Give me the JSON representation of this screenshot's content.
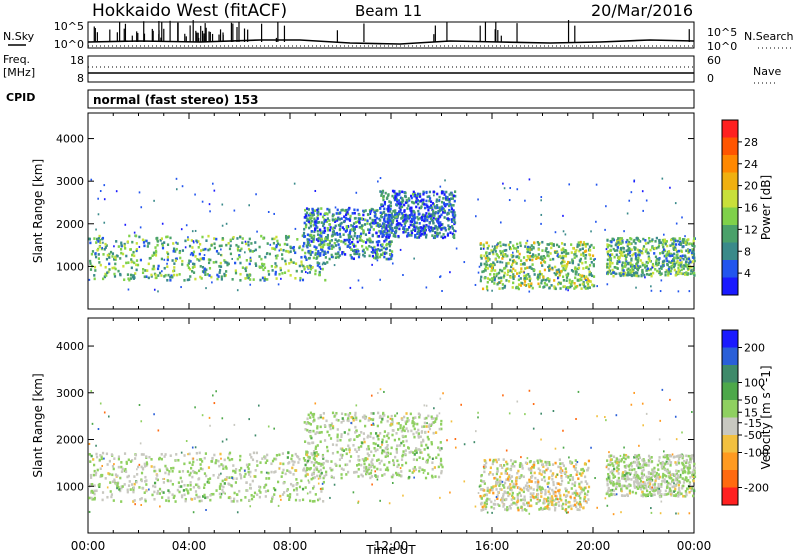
{
  "header": {
    "station": "Hokkaido West (fitACF)",
    "beam": "Beam 11",
    "date": "20/Mar/2016"
  },
  "strip_labels": {
    "nsky": "N.Sky",
    "nsearch": "N.Search",
    "freq_line1": "Freq.",
    "freq_line2": "[MHz]",
    "nave": "Nave",
    "cpid": "CPID",
    "cpid_value": "normal (fast stereo) 153",
    "noise_ticks": [
      "10^5",
      "10^0"
    ],
    "freq_ticks": [
      "18",
      "8"
    ],
    "nave_ticks": [
      "60",
      "0"
    ]
  },
  "colors": {
    "power_scale": [
      "#1a1aff",
      "#2255ee",
      "#3a8a8a",
      "#4aa16a",
      "#7fd14a",
      "#c8e03a",
      "#f0b010",
      "#ff8800",
      "#ff5500",
      "#ff2020"
    ],
    "velocity_scale": [
      "#1a1aff",
      "#2a5fd8",
      "#3f8a6a",
      "#4da84a",
      "#8fd060",
      "#c8c8c0",
      "#f2c040",
      "#ff9a20",
      "#ff6a10",
      "#ff2020"
    ]
  },
  "chart_data": [
    {
      "type": "heatmap",
      "panel": "power",
      "xlabel": "",
      "ylabel": "Slant Range [km]",
      "y_ticks": [
        1000,
        2000,
        3000,
        4000
      ],
      "ylim": [
        0,
        4600
      ],
      "colorbar": {
        "label": "Power [dB]",
        "ticks": [
          4,
          8,
          12,
          16,
          20,
          24,
          28
        ],
        "range": [
          0,
          32
        ]
      },
      "regions": [
        {
          "x": [
            0,
            9.5
          ],
          "y": [
            700,
            1750
          ],
          "value": 12
        },
        {
          "x": [
            8.5,
            12
          ],
          "y": [
            1200,
            2400
          ],
          "value": 8
        },
        {
          "x": [
            15.5,
            20
          ],
          "y": [
            500,
            1600
          ],
          "value": 14
        },
        {
          "x": [
            20.5,
            24
          ],
          "y": [
            800,
            1700
          ],
          "value": 12
        },
        {
          "x": [
            11.5,
            14.5
          ],
          "y": [
            1700,
            2800
          ],
          "value": 6
        }
      ]
    },
    {
      "type": "heatmap",
      "panel": "velocity",
      "xlabel": "Time UT",
      "ylabel": "Slant Range [km]",
      "y_ticks": [
        1000,
        2000,
        3000,
        4000
      ],
      "ylim": [
        0,
        4600
      ],
      "x_ticks": [
        "00:00",
        "04:00",
        "08:00",
        "12:00",
        "16:00",
        "20:00",
        "00:00"
      ],
      "xlim": [
        0,
        24
      ],
      "colorbar": {
        "label": "Velocity [m s^-1]",
        "ticks": [
          200,
          100,
          50,
          15,
          -15,
          -50,
          -100,
          -200
        ],
        "range": [
          -250,
          250
        ]
      },
      "regions": [
        {
          "x": [
            0,
            9.5
          ],
          "y": [
            700,
            1750
          ],
          "value": 0
        },
        {
          "x": [
            8.5,
            14
          ],
          "y": [
            1200,
            2600
          ],
          "value": 0
        },
        {
          "x": [
            15.5,
            19.8
          ],
          "y": [
            500,
            1600
          ],
          "value": -60
        },
        {
          "x": [
            20.5,
            24
          ],
          "y": [
            800,
            1700
          ],
          "value": 0
        }
      ]
    }
  ]
}
